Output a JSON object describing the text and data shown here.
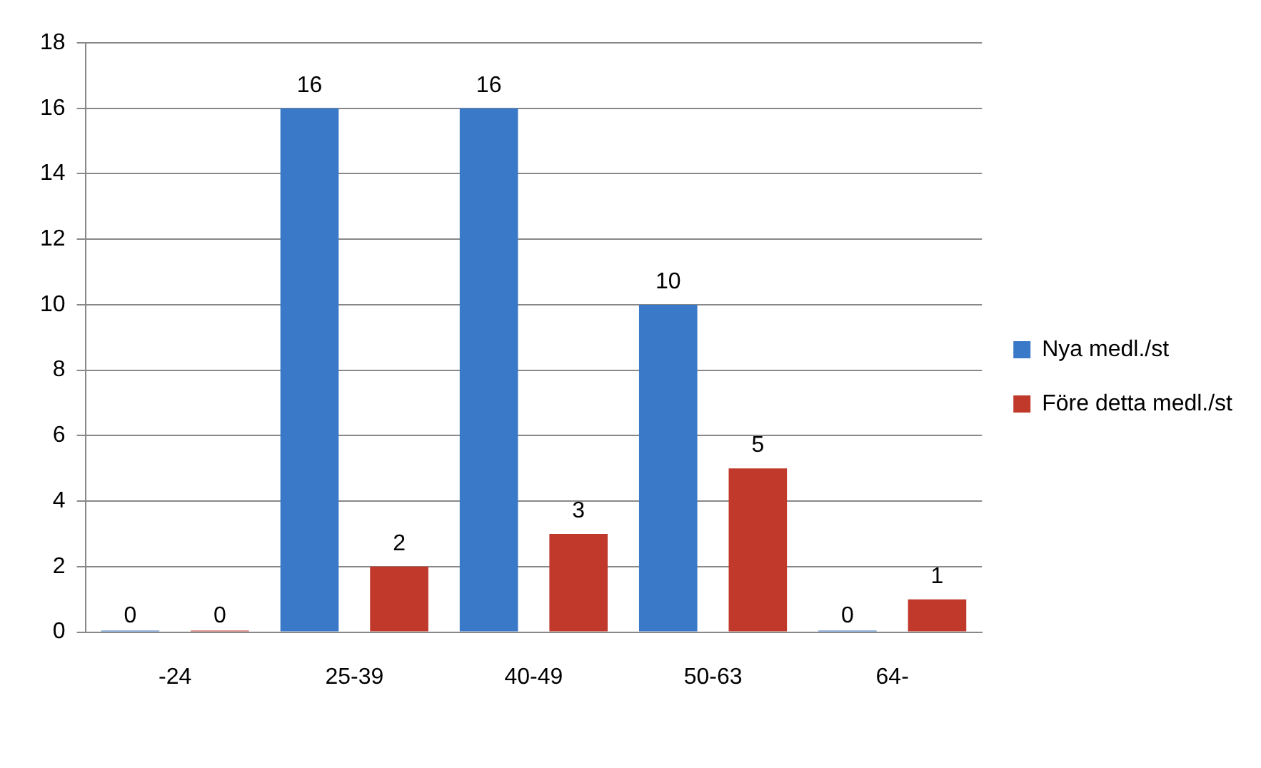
{
  "chart_data": {
    "type": "bar",
    "categories": [
      "-24",
      "25-39",
      "40-49",
      "50-63",
      "64-"
    ],
    "series": [
      {
        "name": "Nya medl./st",
        "color": "#3a78c8",
        "values": [
          0,
          16,
          16,
          10,
          0
        ]
      },
      {
        "name": "Före detta medl./st",
        "color": "#c0392b",
        "values": [
          0,
          2,
          3,
          5,
          1
        ]
      }
    ],
    "ylim": [
      0,
      18
    ],
    "yticks": [
      0,
      2,
      4,
      6,
      8,
      10,
      12,
      14,
      16,
      18
    ],
    "grid": "y",
    "legend": "right",
    "data_labels": true
  }
}
